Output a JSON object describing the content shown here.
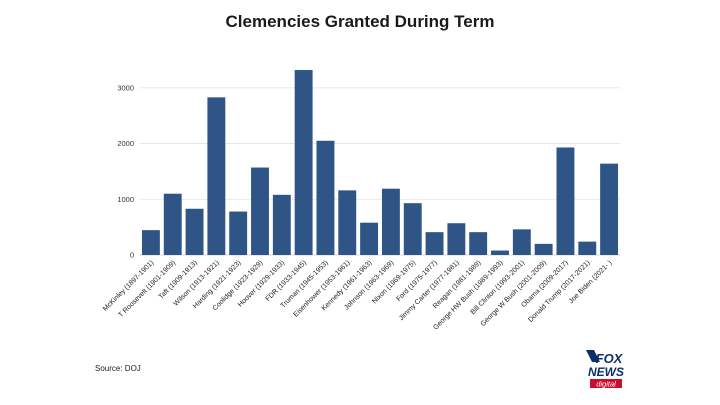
{
  "chart_data": {
    "type": "bar",
    "title": "Clemencies Granted During Term",
    "xlabel": "",
    "ylabel": "",
    "ylim": [
      0,
      3500
    ],
    "yticks": [
      0,
      1000,
      2000,
      3000
    ],
    "grid": true,
    "bar_color": "#2e5585",
    "categories": [
      "McKinley (1897-1901)",
      "T Roosevelt (1901-1909)",
      "Taft (1909-1913)",
      "Wilson (1913-1921)",
      "Harding (1921-1923)",
      "Coolidge (1923-1929)",
      "Hoover (1929-1933)",
      "FDR (1933-1945)",
      "Truman (1945-1953)",
      "Eisenhower (1953-1961)",
      "Kennedy (1961-1963)",
      "Johnson (1963-1969)",
      "Nixon (1969-1975)",
      "Ford (1975-1977)",
      "Jimmy Carter (1977-1981)",
      "Reagan (1981-1989)",
      "George HW Bush (1989-1993)",
      "Bill Clinton (1993-2001)",
      "George W Bush (2001-2009)",
      "Obama (2009-2017)",
      "Donald Trump (2017-2021)",
      "Joe Biden (2021- )"
    ],
    "values": [
      446,
      1100,
      830,
      2830,
      780,
      1570,
      1080,
      3320,
      2050,
      1160,
      580,
      1190,
      930,
      410,
      570,
      410,
      80,
      460,
      200,
      1930,
      240,
      1640
    ]
  },
  "source": "Source: DOJ",
  "logo": {
    "line1": "FOX",
    "line2": "NEWS",
    "line3": "digital",
    "bg_color": "#0c2f6b",
    "accent_color": "#c8102e"
  }
}
